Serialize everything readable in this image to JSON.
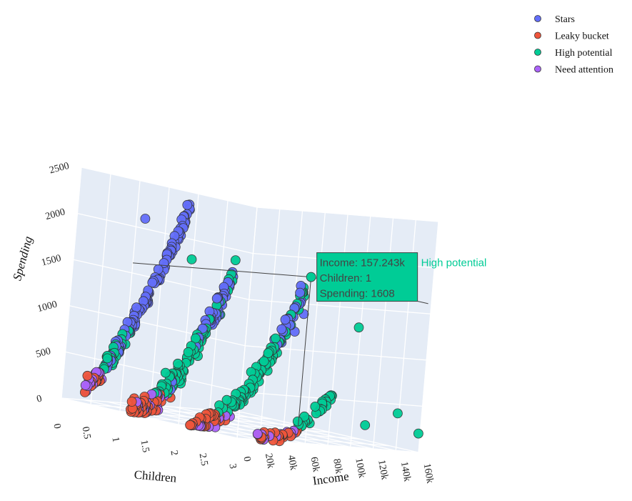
{
  "chart_data": {
    "type": "scatter3d",
    "axes": {
      "x": {
        "label": "Income",
        "range": [
          0,
          160000
        ],
        "ticks": [
          0,
          20000,
          40000,
          60000,
          80000,
          100000,
          120000,
          140000,
          160000
        ],
        "tick_labels": [
          "0",
          "20k",
          "40k",
          "60k",
          "80k",
          "100k",
          "120k",
          "140k",
          "160k"
        ]
      },
      "y": {
        "label": "Children",
        "range": [
          0,
          3
        ],
        "ticks": [
          0,
          0.5,
          1,
          1.5,
          2,
          2.5,
          3
        ],
        "tick_labels": [
          "0",
          "0.5",
          "1",
          "1.5",
          "2",
          "2.5",
          "3"
        ]
      },
      "z": {
        "label": "Spending",
        "range": [
          0,
          2500
        ],
        "ticks": [
          0,
          500,
          1000,
          1500,
          2000,
          2500
        ],
        "tick_labels": [
          "0",
          "500",
          "1000",
          "1500",
          "2000",
          "2500"
        ]
      }
    },
    "grid": true,
    "legend_position": "top-right",
    "series": [
      {
        "name": "Stars",
        "color": "#636efa"
      },
      {
        "name": "Leaky bucket",
        "color": "#ef553b"
      },
      {
        "name": "High potential",
        "color": "#00cc96"
      },
      {
        "name": "Need attention",
        "color": "#ab63fa"
      }
    ],
    "hover": {
      "series": "High potential",
      "income": 157243,
      "children": 1,
      "spending": 1608,
      "lines": [
        "Income: 157.243k",
        "Children: 1",
        "Spending: 1608"
      ],
      "series_label": "High potential"
    }
  }
}
